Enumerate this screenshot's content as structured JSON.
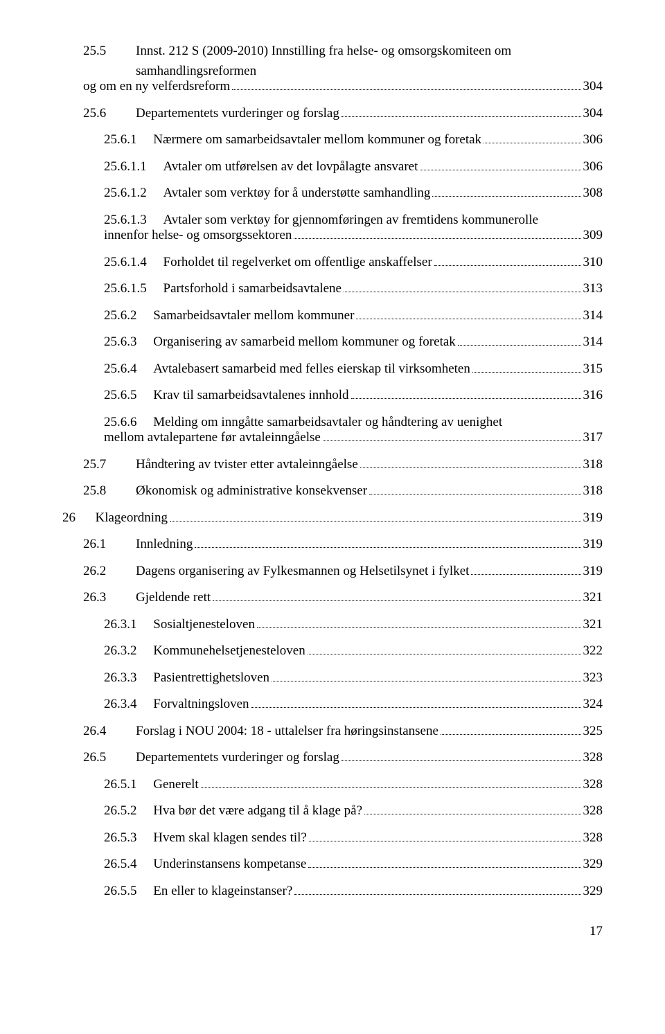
{
  "entries": [
    {
      "indent": 1,
      "num": "25.5",
      "title": "Innst. 212 S (2009-2010) Innstilling fra helse- og omsorgskomiteen om samhandlingsreformen og om en ny velferdsreform",
      "page": "304",
      "wrap": true
    },
    {
      "indent": 1,
      "num": "25.6",
      "title": "Departementets vurderinger og forslag",
      "page": "304"
    },
    {
      "indent": 2,
      "num": "25.6.1",
      "title": "Nærmere om samarbeidsavtaler mellom kommuner og foretak",
      "page": "306"
    },
    {
      "indent": 2,
      "num": "25.6.1.1",
      "title": "Avtaler om utførelsen av det lovpålagte ansvaret",
      "page": "306"
    },
    {
      "indent": 2,
      "num": "25.6.1.2",
      "title": "Avtaler som verktøy for å understøtte samhandling",
      "page": "308"
    },
    {
      "indent": 2,
      "num": "25.6.1.3",
      "title": "Avtaler som verktøy for gjennomføringen av fremtidens kommunerolle innenfor helse- og omsorgssektoren",
      "page": "309",
      "wrap": true
    },
    {
      "indent": 2,
      "num": "25.6.1.4",
      "title": "Forholdet til regelverket om offentlige anskaffelser",
      "page": "310"
    },
    {
      "indent": 2,
      "num": "25.6.1.5",
      "title": "Partsforhold i samarbeidsavtalene",
      "page": "313"
    },
    {
      "indent": 2,
      "num": "25.6.2",
      "title": "Samarbeidsavtaler mellom kommuner",
      "page": "314"
    },
    {
      "indent": 2,
      "num": "25.6.3",
      "title": "Organisering av samarbeid mellom kommuner og foretak",
      "page": "314"
    },
    {
      "indent": 2,
      "num": "25.6.4",
      "title": "Avtalebasert samarbeid med felles eierskap til virksomheten",
      "page": "315"
    },
    {
      "indent": 2,
      "num": "25.6.5",
      "title": "Krav til samarbeidsavtalenes innhold",
      "page": "316"
    },
    {
      "indent": 2,
      "num": "25.6.6",
      "title": "Melding om inngåtte samarbeidsavtaler og håndtering av uenighet mellom avtalepartene før avtaleinngåelse",
      "page": "317",
      "wrap": true
    },
    {
      "indent": 1,
      "num": "25.7",
      "title": "Håndtering av tvister etter avtaleinngåelse",
      "page": "318"
    },
    {
      "indent": 1,
      "num": "25.8",
      "title": "Økonomisk og administrative konsekvenser",
      "page": "318"
    },
    {
      "indent": 0,
      "num": "26",
      "title": "Klageordning",
      "page": "319"
    },
    {
      "indent": 1,
      "num": "26.1",
      "title": "Innledning",
      "page": "319"
    },
    {
      "indent": 1,
      "num": "26.2",
      "title": "Dagens organisering av Fylkesmannen og Helsetilsynet i fylket",
      "page": "319"
    },
    {
      "indent": 1,
      "num": "26.3",
      "title": "Gjeldende rett",
      "page": "321"
    },
    {
      "indent": 2,
      "num": "26.3.1",
      "title": "Sosialtjenesteloven",
      "page": "321"
    },
    {
      "indent": 2,
      "num": "26.3.2",
      "title": "Kommunehelsetjenesteloven",
      "page": "322"
    },
    {
      "indent": 2,
      "num": "26.3.3",
      "title": "Pasientrettighetsloven",
      "page": "323"
    },
    {
      "indent": 2,
      "num": "26.3.4",
      "title": "Forvaltningsloven",
      "page": "324"
    },
    {
      "indent": 1,
      "num": "26.4",
      "title": "Forslag i NOU 2004: 18 - uttalelser fra høringsinstansene",
      "page": "325"
    },
    {
      "indent": 1,
      "num": "26.5",
      "title": "Departementets vurderinger og forslag",
      "page": "328"
    },
    {
      "indent": 2,
      "num": "26.5.1",
      "title": "Generelt",
      "page": "328"
    },
    {
      "indent": 2,
      "num": "26.5.2",
      "title": "Hva bør det være adgang til å klage på?",
      "page": "328"
    },
    {
      "indent": 2,
      "num": "26.5.3",
      "title": "Hvem skal klagen sendes til?",
      "page": "328"
    },
    {
      "indent": 2,
      "num": "26.5.4",
      "title": "Underinstansens kompetanse",
      "page": "329"
    },
    {
      "indent": 2,
      "num": "26.5.5",
      "title": "En eller to klageinstanser?",
      "page": "329"
    }
  ],
  "pageNumber": "17",
  "gaps": {
    "level0": "      ",
    "level1": "         ",
    "level2": "     "
  }
}
